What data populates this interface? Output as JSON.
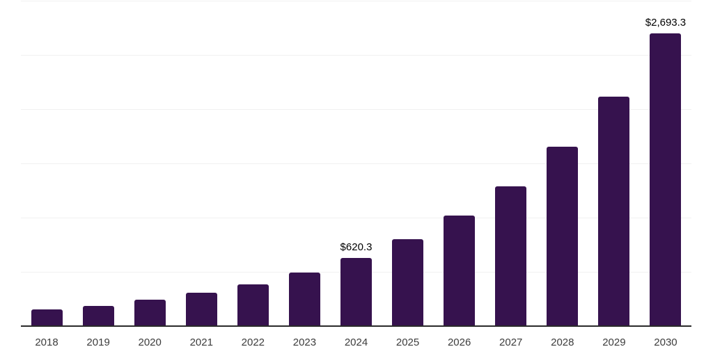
{
  "chart_data": {
    "type": "bar",
    "title": "",
    "xlabel": "",
    "ylabel": "",
    "categories": [
      "2018",
      "2019",
      "2020",
      "2021",
      "2022",
      "2023",
      "2024",
      "2025",
      "2026",
      "2027",
      "2028",
      "2029",
      "2030"
    ],
    "values": [
      145,
      181,
      235,
      299,
      378,
      487,
      620.3,
      797,
      1015,
      1284,
      1646,
      2109,
      2693.3
    ],
    "labels": {
      "2024": "$620.3",
      "2030": "$2,693.3"
    },
    "ylim": [
      0,
      3000
    ],
    "gridline_values": [
      500,
      1000,
      1500,
      2000,
      2500,
      3000
    ],
    "grid": true,
    "legend_position": "none",
    "y_tick_labels_visible": false,
    "colors": {
      "bar": "#36124e",
      "axis": "#2a2a2a",
      "gridline": "#f1f1f1",
      "x_tick_label": "#3c3c3c",
      "data_label": "#000000",
      "background": "#ffffff"
    }
  }
}
